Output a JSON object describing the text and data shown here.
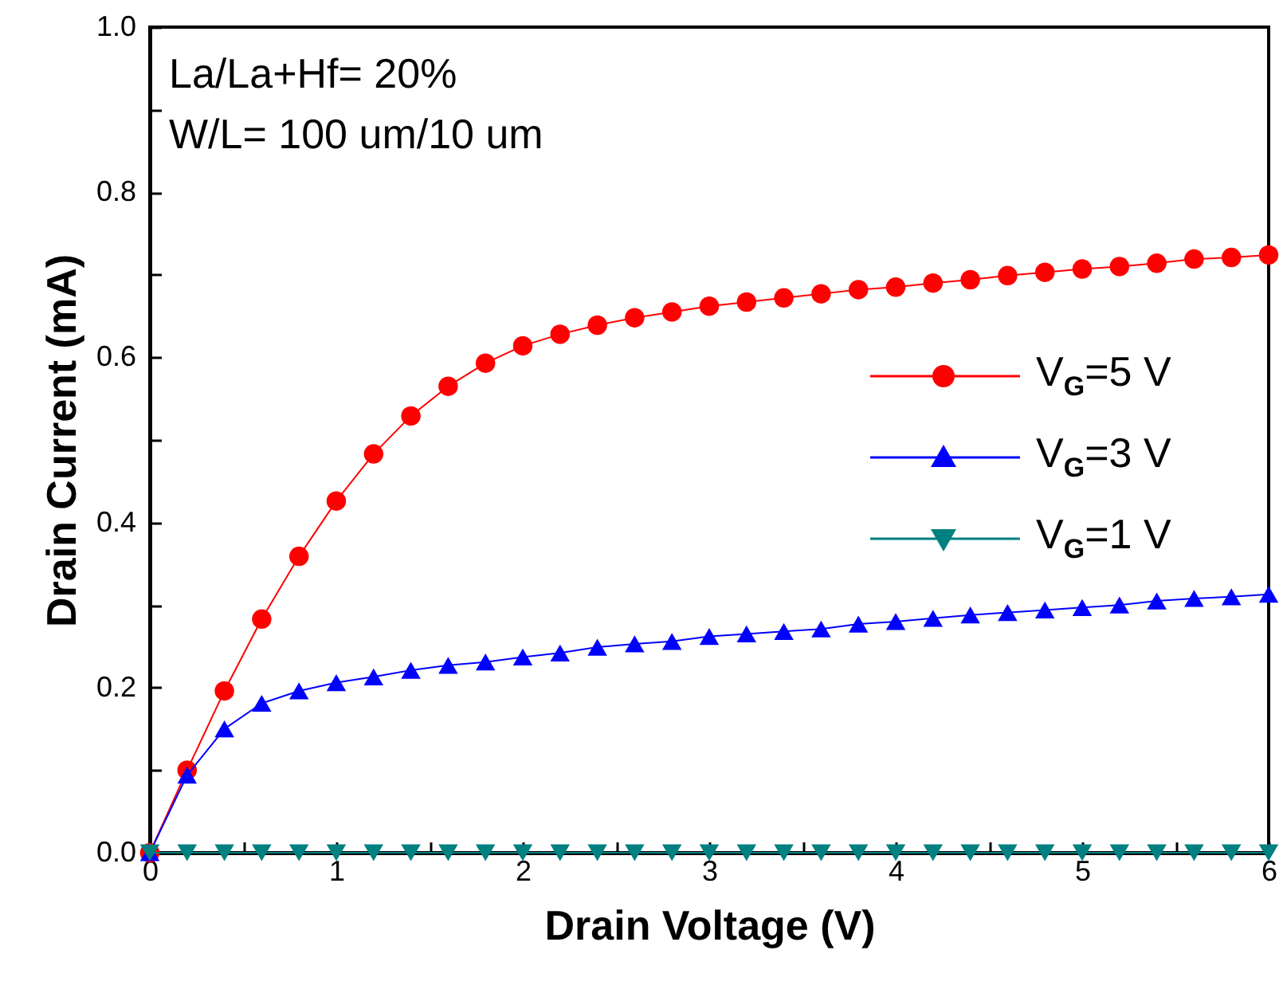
{
  "chart_data": {
    "type": "line",
    "xlabel": "Drain Voltage (V)",
    "ylabel": "Drain Current (mA)",
    "annotations": [
      "La/La+Hf= 20%",
      "W/L= 100 um/10 um"
    ],
    "x": [
      0,
      0.2,
      0.4,
      0.6,
      0.8,
      1.0,
      1.2,
      1.4,
      1.6,
      1.8,
      2.0,
      2.2,
      2.4,
      2.6,
      2.8,
      3.0,
      3.2,
      3.4,
      3.6,
      3.8,
      4.0,
      4.2,
      4.4,
      4.6,
      4.8,
      5.0,
      5.2,
      5.4,
      5.6,
      5.8,
      6.0
    ],
    "series": [
      {
        "name": "V$_{G}$=5 V",
        "color": "#ff0000",
        "marker": "circle",
        "values": [
          0,
          0.1,
          0.196,
          0.283,
          0.359,
          0.426,
          0.483,
          0.529,
          0.565,
          0.593,
          0.614,
          0.628,
          0.639,
          0.648,
          0.655,
          0.662,
          0.667,
          0.672,
          0.677,
          0.682,
          0.685,
          0.69,
          0.694,
          0.699,
          0.703,
          0.707,
          0.71,
          0.714,
          0.719,
          0.721,
          0.724
        ]
      },
      {
        "name": "V$_{G}$=3 V",
        "color": "#0000ff",
        "marker": "triangle",
        "values": [
          0,
          0.094,
          0.15,
          0.181,
          0.196,
          0.206,
          0.213,
          0.221,
          0.227,
          0.231,
          0.237,
          0.242,
          0.249,
          0.253,
          0.256,
          0.262,
          0.265,
          0.268,
          0.271,
          0.277,
          0.28,
          0.284,
          0.288,
          0.291,
          0.294,
          0.297,
          0.3,
          0.305,
          0.308,
          0.31,
          0.313
        ]
      },
      {
        "name": "V$_{G}$=1 V",
        "color": "#008080",
        "marker": "triangle-down",
        "values": [
          0,
          0,
          0,
          0,
          0,
          0,
          0,
          0,
          0,
          0,
          0,
          0,
          0,
          0,
          0,
          0,
          0,
          0,
          0,
          0,
          0,
          0,
          0,
          0,
          0,
          0,
          0,
          0,
          0,
          0,
          0
        ]
      }
    ],
    "xlim": [
      0,
      6
    ],
    "xticks": [
      0,
      {
        "value": 0.5,
        "label": null
      },
      1,
      {
        "value": 1.5,
        "label": null
      },
      2,
      {
        "value": 2.5,
        "label": null
      },
      3,
      {
        "value": 3.5,
        "label": null
      },
      4,
      {
        "value": 4.5,
        "label": null
      },
      5,
      {
        "value": 5.5,
        "label": null
      },
      6
    ],
    "ylim": [
      0,
      1.0
    ],
    "yticks": [
      {
        "value": 0,
        "label": "0.0"
      },
      {
        "value": 0.1,
        "label": null
      },
      {
        "value": 0.2,
        "label": "0.2"
      },
      {
        "value": 0.3,
        "label": null
      },
      {
        "value": 0.4,
        "label": "0.4"
      },
      {
        "value": 0.5,
        "label": null
      },
      {
        "value": 0.6,
        "label": "0.6"
      },
      {
        "value": 0.7,
        "label": null
      },
      {
        "value": 0.8,
        "label": "0.8"
      },
      {
        "value": 0.9,
        "label": null
      },
      {
        "value": 1.0,
        "label": "1.0"
      }
    ],
    "legend": "right",
    "grid": false
  }
}
